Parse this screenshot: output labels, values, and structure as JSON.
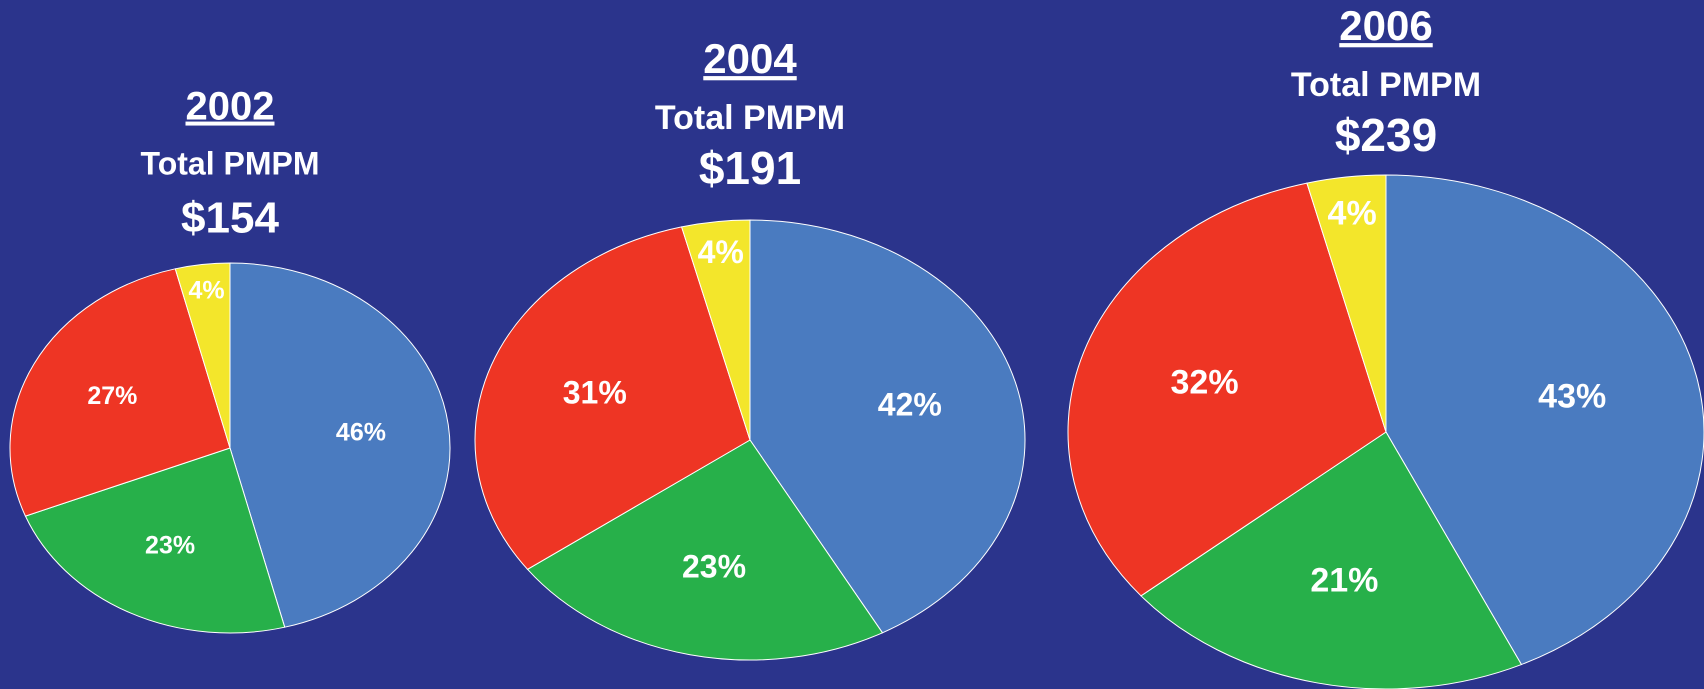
{
  "chart_data": [
    {
      "type": "pie",
      "title": "2002",
      "subtitle": "Total PMPM",
      "annotation": "$154",
      "values": [
        46,
        23,
        27,
        4
      ],
      "value_labels": [
        "46%",
        "23%",
        "27%",
        "4%"
      ],
      "colors": [
        "#4a7bc0",
        "#27b04a",
        "#ee3524",
        "#f3e62b"
      ]
    },
    {
      "type": "pie",
      "title": "2004",
      "subtitle": "Total PMPM",
      "annotation": "$191",
      "values": [
        42,
        23,
        31,
        4
      ],
      "value_labels": [
        "42%",
        "23%",
        "31%",
        "4%"
      ],
      "colors": [
        "#4a7bc0",
        "#27b04a",
        "#ee3524",
        "#f3e62b"
      ]
    },
    {
      "type": "pie",
      "title": "2006",
      "subtitle": "Total PMPM",
      "annotation": "$239",
      "values": [
        43,
        21,
        32,
        4
      ],
      "value_labels": [
        "43%",
        "21%",
        "32%",
        "4%"
      ],
      "colors": [
        "#4a7bc0",
        "#27b04a",
        "#ee3524",
        "#f3e62b"
      ]
    }
  ]
}
